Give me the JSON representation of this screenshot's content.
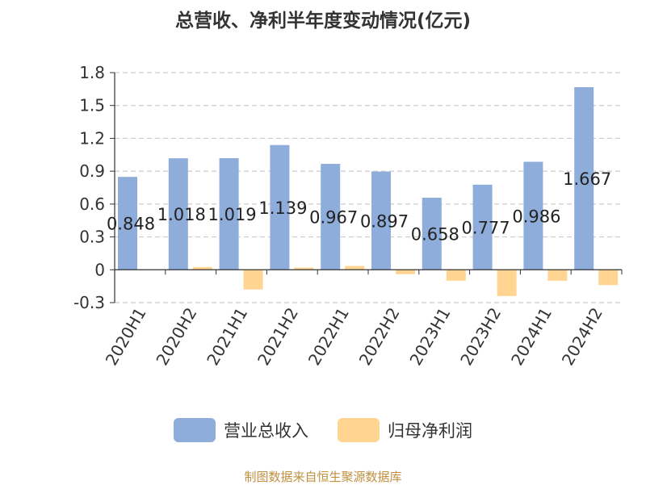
{
  "title": "总营收、净利半年度变动情况(亿元)",
  "source": "制图数据来自恒生聚源数据库",
  "colors": {
    "revenue": "#8eaddb",
    "net_profit": "#ffd591",
    "grid": "#cccccc",
    "axis": "#333333",
    "text": "#333333"
  },
  "chart_data": {
    "type": "bar",
    "title": "总营收、净利半年度变动情况(亿元)",
    "categories": [
      "2020H1",
      "2020H2",
      "2021H1",
      "2021H2",
      "2022H1",
      "2022H2",
      "2023H1",
      "2023H2",
      "2024H1",
      "2024H2"
    ],
    "series": [
      {
        "name": "营业总收入",
        "values": [
          0.848,
          1.018,
          1.019,
          1.139,
          0.967,
          0.897,
          0.658,
          0.777,
          0.986,
          1.667
        ],
        "labels": [
          "0.848",
          "1.018",
          "1.019",
          "1.139",
          "0.967",
          "0.897",
          "0.658",
          "0.777",
          "0.986",
          "1.667"
        ]
      },
      {
        "name": "归母净利润",
        "values": [
          0.0,
          0.025,
          -0.18,
          0.02,
          0.035,
          -0.04,
          -0.1,
          -0.24,
          -0.1,
          -0.14
        ]
      }
    ],
    "ylim": [
      -0.3,
      1.8
    ],
    "yticks": [
      -0.3,
      0,
      0.3,
      0.6,
      0.9,
      1.2,
      1.5,
      1.8
    ],
    "ytick_labels": [
      "-0.3",
      "0",
      "0.3",
      "0.6",
      "0.9",
      "1.2",
      "1.5",
      "1.8"
    ],
    "grid": true,
    "legend_position": "bottom"
  }
}
